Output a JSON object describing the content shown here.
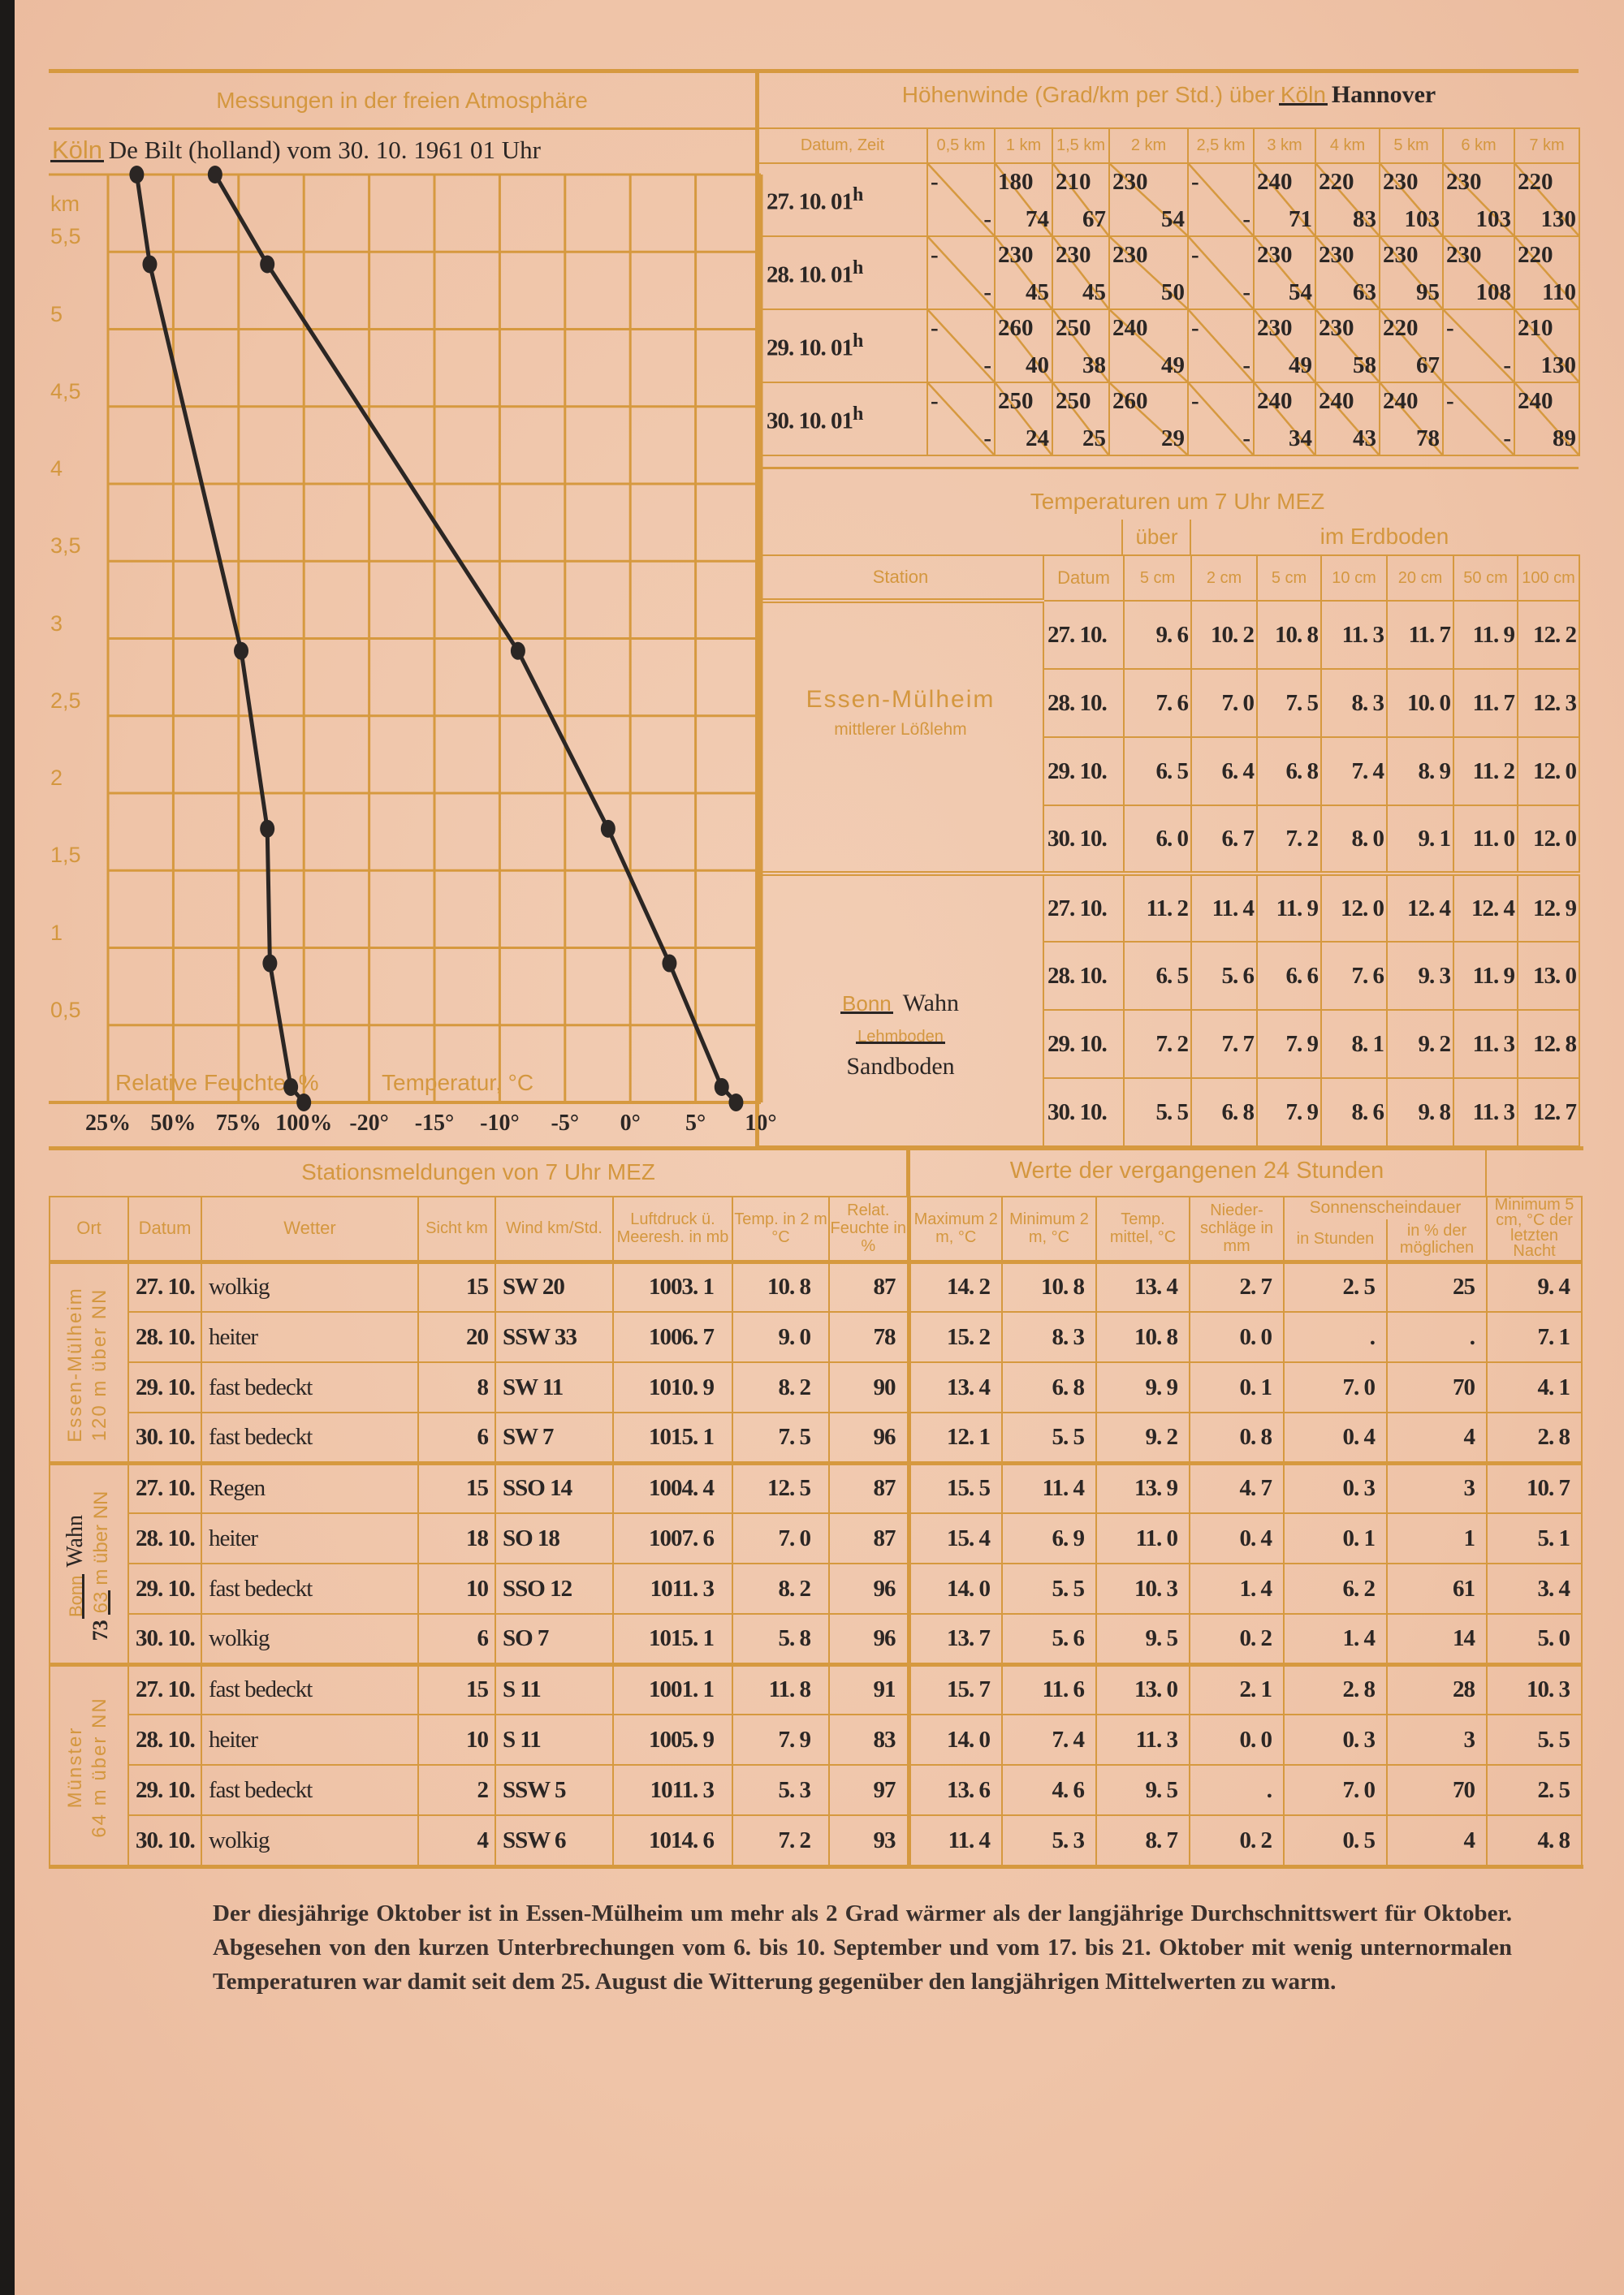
{
  "colors": {
    "paper": "#efc4a8",
    "printed_orange": "#d6993f",
    "ink": "#2b2624"
  },
  "atmosphere": {
    "title": "Messungen in der freien Atmosphäre",
    "station_struck": "Köln",
    "station": "De Bilt (holland)  vom 30. 10. 1961 01 Uhr"
  },
  "chart_data": {
    "type": "line",
    "ylabel": "km",
    "ylim": [
      0,
      6
    ],
    "grid": true,
    "y_ticks": [
      {
        "value": 5.5,
        "label": "5,5"
      },
      {
        "value": 5,
        "label": "5"
      },
      {
        "value": 4.5,
        "label": "4,5"
      },
      {
        "value": 4,
        "label": "4"
      },
      {
        "value": 3.5,
        "label": "3,5"
      },
      {
        "value": 3,
        "label": "3"
      },
      {
        "value": 2.5,
        "label": "2,5"
      },
      {
        "value": 2,
        "label": "2"
      },
      {
        "value": 1.5,
        "label": "1,5"
      },
      {
        "value": 1,
        "label": "1"
      },
      {
        "value": 0.5,
        "label": "0,5"
      }
    ],
    "x_axes": [
      {
        "quantity": "humidity",
        "title": "Relative Feuchte, %",
        "range": [
          25,
          100
        ],
        "ticks": [
          {
            "value": 25,
            "label": "25%"
          },
          {
            "value": 50,
            "label": "50%"
          },
          {
            "value": 75,
            "label": "75%"
          },
          {
            "value": 100,
            "label": "100%"
          }
        ]
      },
      {
        "quantity": "temperature",
        "title": "Temperatur, °C",
        "range": [
          -40,
          10
        ],
        "ticks": [
          {
            "value": -20,
            "label": "-20°"
          },
          {
            "value": -15,
            "label": "-15°"
          },
          {
            "value": -10,
            "label": "-10°"
          },
          {
            "value": -5,
            "label": "-5°"
          },
          {
            "value": 0,
            "label": "0°"
          },
          {
            "value": 5,
            "label": "5°"
          },
          {
            "value": 10,
            "label": "10°"
          }
        ]
      }
    ],
    "series": [
      {
        "axis": "humidity",
        "points": [
          {
            "km": 6.0,
            "value": 36
          },
          {
            "km": 5.42,
            "value": 41
          },
          {
            "km": 2.92,
            "value": 76
          },
          {
            "km": 1.77,
            "value": 86
          },
          {
            "km": 0.9,
            "value": 87
          },
          {
            "km": 0.1,
            "value": 95
          },
          {
            "km": 0.0,
            "value": 100
          }
        ]
      },
      {
        "axis": "temperature",
        "points": [
          {
            "km": 6.0,
            "value": -31.8
          },
          {
            "km": 5.42,
            "value": -27.8
          },
          {
            "km": 2.92,
            "value": -8.6
          },
          {
            "km": 1.77,
            "value": -1.7
          },
          {
            "km": 0.9,
            "value": 3.0
          },
          {
            "km": 0.1,
            "value": 7.0
          },
          {
            "km": 0.0,
            "value": 8.1
          }
        ]
      }
    ]
  },
  "winds": {
    "title": "Höhenwinde (Grad/km per Std.) über",
    "station_struck": "Köln",
    "station": "Hannover",
    "headers": [
      "Datum, Zeit",
      "0,5 km",
      "1 km",
      "1,5 km",
      "2 km",
      "2,5 km",
      "3 km",
      "4 km",
      "5 km",
      "6 km",
      "7 km"
    ],
    "rows": [
      {
        "date": "27. 10.  01",
        "sup": "h",
        "cells": [
          [
            "-",
            "-"
          ],
          [
            "180",
            "74"
          ],
          [
            "210",
            "67"
          ],
          [
            "230",
            "54"
          ],
          [
            "-",
            "-"
          ],
          [
            "240",
            "71"
          ],
          [
            "220",
            "83"
          ],
          [
            "230",
            "103"
          ],
          [
            "230",
            "103"
          ],
          [
            "220",
            "130"
          ]
        ]
      },
      {
        "date": "28. 10.  01",
        "sup": "h",
        "cells": [
          [
            "-",
            "-"
          ],
          [
            "230",
            "45"
          ],
          [
            "230",
            "45"
          ],
          [
            "230",
            "50"
          ],
          [
            "-",
            "-"
          ],
          [
            "230",
            "54"
          ],
          [
            "230",
            "63"
          ],
          [
            "230",
            "95"
          ],
          [
            "230",
            "108"
          ],
          [
            "220",
            "110"
          ]
        ]
      },
      {
        "date": "29. 10.  01",
        "sup": "h",
        "cells": [
          [
            "-",
            "-"
          ],
          [
            "260",
            "40"
          ],
          [
            "250",
            "38"
          ],
          [
            "240",
            "49"
          ],
          [
            "-",
            "-"
          ],
          [
            "230",
            "49"
          ],
          [
            "230",
            "58"
          ],
          [
            "220",
            "67"
          ],
          [
            "-",
            "-"
          ],
          [
            "210",
            "130"
          ]
        ]
      },
      {
        "date": "30. 10.  01",
        "sup": "h",
        "cells": [
          [
            "-",
            "-"
          ],
          [
            "250",
            "24"
          ],
          [
            "250",
            "25"
          ],
          [
            "260",
            "29"
          ],
          [
            "-",
            "-"
          ],
          [
            "240",
            "34"
          ],
          [
            "240",
            "43"
          ],
          [
            "240",
            "78"
          ],
          [
            "-",
            "-"
          ],
          [
            "240",
            "89"
          ]
        ]
      }
    ]
  },
  "soil": {
    "title": "Temperaturen um 7 Uhr MEZ",
    "above_label": "über",
    "ground_label": "im Erdboden",
    "headers": [
      "Station",
      "Datum",
      "5 cm",
      "2 cm",
      "5 cm",
      "10 cm",
      "20 cm",
      "50 cm",
      "100 cm"
    ],
    "groups": [
      {
        "station": "Essen-Mülheim",
        "soil_type": "mittlerer Lößlehm",
        "rows": [
          [
            "27. 10.",
            "9. 6",
            "10. 2",
            "10. 8",
            "11. 3",
            "11. 7",
            "11. 9",
            "12. 2"
          ],
          [
            "28. 10.",
            "7. 6",
            "7. 0",
            "7. 5",
            "8. 3",
            "10. 0",
            "11. 7",
            "12. 3"
          ],
          [
            "29. 10.",
            "6. 5",
            "6. 4",
            "6. 8",
            "7. 4",
            "8. 9",
            "11. 2",
            "12. 0"
          ],
          [
            "30. 10.",
            "6. 0",
            "6. 7",
            "7. 2",
            "8. 0",
            "9. 1",
            "11. 0",
            "12. 0"
          ]
        ]
      },
      {
        "station_struck": "Bonn",
        "station": "Wahn",
        "soil_type_struck": "Lehmboden",
        "soil_type": "Sandboden",
        "rows": [
          [
            "27. 10.",
            "11. 2",
            "11. 4",
            "11. 9",
            "12. 0",
            "12. 4",
            "12. 4",
            "12. 9"
          ],
          [
            "28. 10.",
            "6. 5",
            "5. 6",
            "6. 6",
            "7. 6",
            "9. 3",
            "11. 9",
            "13. 0"
          ],
          [
            "29. 10.",
            "7. 2",
            "7. 7",
            "7. 9",
            "8. 1",
            "9. 2",
            "11. 3",
            "12. 8"
          ],
          [
            "30. 10.",
            "5. 5",
            "6. 8",
            "7. 9",
            "8. 6",
            "9. 8",
            "11. 3",
            "12. 7"
          ]
        ]
      }
    ]
  },
  "stations": {
    "title": "Stationsmeldungen von 7 Uhr MEZ",
    "past_title": "Werte der vergangenen 24 Stunden",
    "sunshine_label": "Sonnenscheindauer",
    "headers": [
      "Ort",
      "Datum",
      "Wetter",
      "Sicht km",
      "Wind km/Std.",
      "Luftdruck ü. Meeresh. in mb",
      "Temp. in 2 m °C",
      "Relat. Feuchte in %",
      "Maximum 2 m, °C",
      "Minimum 2 m, °C",
      "Temp. mittel, °C",
      "Nieder- schläge in mm",
      "in Stunden",
      "in % der möglichen",
      "Minimum 5 cm, °C der letzten Nacht"
    ],
    "groups": [
      {
        "name": "Essen-Mülheim",
        "elevation": "120 m über NN",
        "rows": [
          [
            "27. 10.",
            "wolkig",
            "15",
            "SW  20",
            "1003. 1",
            "10. 8",
            "87",
            "14. 2",
            "10. 8",
            "13. 4",
            "2. 7",
            "2. 5",
            "25",
            "9. 4"
          ],
          [
            "28. 10.",
            "heiter",
            "20",
            "SSW  33",
            "1006. 7",
            "9. 0",
            "78",
            "15. 2",
            "8. 3",
            "10. 8",
            "0. 0",
            ".",
            ".",
            "7. 1"
          ],
          [
            "29. 10.",
            "fast bedeckt",
            "8",
            "SW   11",
            "1010. 9",
            "8. 2",
            "90",
            "13. 4",
            "6. 8",
            "9. 9",
            "0. 1",
            "7. 0",
            "70",
            "4. 1"
          ],
          [
            "30. 10.",
            "fast bedeckt",
            "6",
            "SW  7",
            "1015. 1",
            "7. 5",
            "96",
            "12. 1",
            "5. 5",
            "9. 2",
            "0. 8",
            "0. 4",
            "4",
            "2. 8"
          ]
        ]
      },
      {
        "name_struck": "Bonn",
        "name": "Wahn",
        "elevation_struck": "63",
        "elevation": "73",
        "elevation_suffix": "m über NN",
        "rows": [
          [
            "27. 10.",
            "Regen",
            "15",
            "SSO  14",
            "1004. 4",
            "12. 5",
            "87",
            "15. 5",
            "11. 4",
            "13. 9",
            "4. 7",
            "0. 3",
            "3",
            "10. 7"
          ],
          [
            "28. 10.",
            "heiter",
            "18",
            "SO   18",
            "1007. 6",
            "7. 0",
            "87",
            "15. 4",
            "6. 9",
            "11. 0",
            "0. 4",
            "0. 1",
            "1",
            "5. 1"
          ],
          [
            "29. 10.",
            "fast bedeckt",
            "10",
            "SSO  12",
            "1011. 3",
            "8. 2",
            "96",
            "14. 0",
            "5. 5",
            "10. 3",
            "1. 4",
            "6. 2",
            "61",
            "3. 4"
          ],
          [
            "30. 10.",
            "wolkig",
            "6",
            "SO   7",
            "1015. 1",
            "5. 8",
            "96",
            "13. 7",
            "5. 6",
            "9. 5",
            "0. 2",
            "1. 4",
            "14",
            "5. 0"
          ]
        ]
      },
      {
        "name": "Münster",
        "elevation": "64 m über NN",
        "rows": [
          [
            "27. 10.",
            "fast bedeckt",
            "15",
            "S  11",
            "1001. 1",
            "11. 8",
            "91",
            "15. 7",
            "11. 6",
            "13. 0",
            "2. 1",
            "2. 8",
            "28",
            "10. 3"
          ],
          [
            "28. 10.",
            "heiter",
            "10",
            "S  11",
            "1005. 9",
            "7. 9",
            "83",
            "14. 0",
            "7. 4",
            "11. 3",
            "0. 0",
            "0. 3",
            "3",
            "5. 5"
          ],
          [
            "29. 10.",
            "fast bedeckt",
            "2",
            "SSW  5",
            "1011. 3",
            "5. 3",
            "97",
            "13. 6",
            "4. 6",
            "9. 5",
            ".",
            "7. 0",
            "70",
            "2. 5"
          ],
          [
            "30. 10.",
            "wolkig",
            "4",
            "SSW  6",
            "1014. 6",
            "7. 2",
            "93",
            "11. 4",
            "5. 3",
            "8. 7",
            "0. 2",
            "0. 5",
            "4",
            "4. 8"
          ]
        ]
      }
    ]
  },
  "note": "Der diesjährige Oktober ist in Essen-Mülheim um mehr als 2 Grad wärmer als der langjährige Durchschnittswert für Oktober. Abgesehen von den kurzen Unterbrechungen vom 6. bis 10. September und vom 17. bis 21. Oktober mit wenig unternormalen Temperaturen war damit seit dem 25. August die Witterung gegenüber den langjährigen Mittelwerten zu warm."
}
